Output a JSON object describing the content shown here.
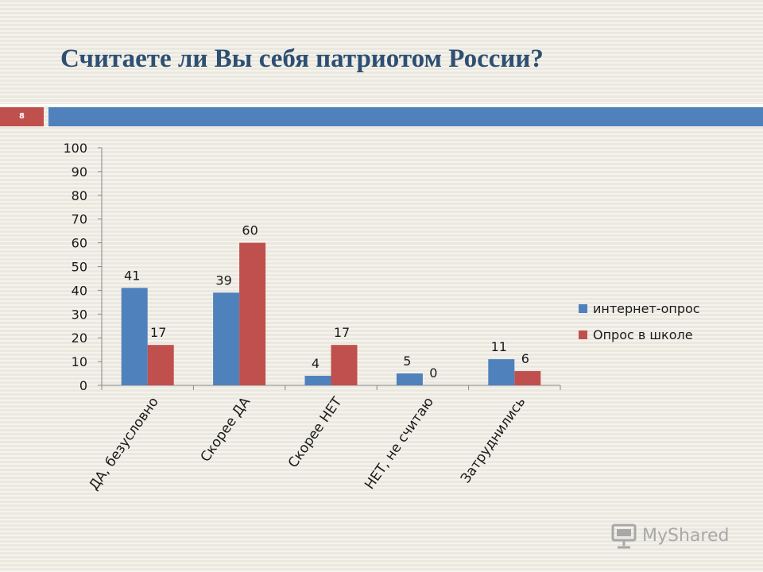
{
  "slide": {
    "title": "Считаете ли Вы себя патриотом России?",
    "page_number": "8",
    "watermark": "MyShared"
  },
  "colors": {
    "background": "#ebe8df",
    "title": "#2d4f73",
    "badge": "#c0504d",
    "bar_header": "#4f81bd"
  },
  "chart_data": {
    "type": "bar",
    "title": "",
    "xlabel": "",
    "ylabel": "",
    "categories": [
      "ДА, безусловно",
      "Скорее ДА",
      "Скорее НЕТ",
      "НЕТ, не считаю",
      "Затруднились"
    ],
    "series": [
      {
        "name": "интернет-опрос",
        "values": [
          41,
          39,
          4,
          5,
          11
        ],
        "color": "#4f81bd"
      },
      {
        "name": "Опрос в школе",
        "values": [
          17,
          60,
          17,
          0,
          6
        ],
        "color": "#c0504d"
      }
    ],
    "ylim": [
      0,
      100
    ],
    "yticks": [
      0,
      10,
      20,
      30,
      40,
      50,
      60,
      70,
      80,
      90,
      100
    ],
    "grid": false,
    "legend": "right",
    "data_labels": true
  }
}
